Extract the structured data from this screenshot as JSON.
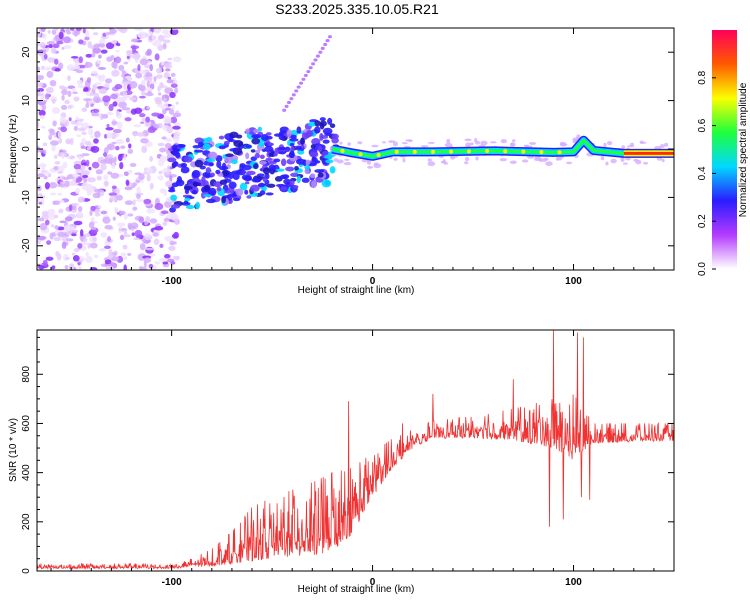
{
  "figure_title": "S233.2025.335.10.05.R21",
  "chart_data": [
    {
      "type": "heatmap",
      "title": "",
      "xlabel": "Height of straight line (km)",
      "ylabel": "Frequency (Hz)",
      "xlim": [
        -167,
        150
      ],
      "ylim": [
        -25,
        25
      ],
      "xticks": [
        -100,
        0,
        100
      ],
      "xtick_labels": [
        "-100",
        "0",
        "100"
      ],
      "yticks": [
        -20,
        -10,
        0,
        10,
        20
      ],
      "ytick_labels": [
        "-20",
        "-10",
        "0",
        "10",
        "20"
      ],
      "trace": [
        {
          "x": -20,
          "y": 0.0
        },
        {
          "x": -10,
          "y": -0.8
        },
        {
          "x": 0,
          "y": -1.5
        },
        {
          "x": 10,
          "y": -0.6
        },
        {
          "x": 30,
          "y": -0.6
        },
        {
          "x": 60,
          "y": -0.4
        },
        {
          "x": 90,
          "y": -0.7
        },
        {
          "x": 100,
          "y": -0.6
        },
        {
          "x": 105,
          "y": 1.8
        },
        {
          "x": 110,
          "y": -0.3
        },
        {
          "x": 125,
          "y": -0.9
        },
        {
          "x": 150,
          "y": -0.9
        }
      ],
      "colorbar": {
        "label": "Normalized spectral amplitude",
        "range": [
          0,
          1
        ],
        "ticks": [
          0,
          0.2,
          0.4,
          0.6,
          0.8
        ],
        "tick_labels": [
          "0.0",
          "0.2",
          "0.4",
          "0.6",
          "0.8"
        ],
        "colors": [
          "#ffffff",
          "#b43bff",
          "#2a1cff",
          "#00d9ff",
          "#1fff3c",
          "#fbff00",
          "#ff5a00",
          "#ff005a"
        ]
      }
    },
    {
      "type": "line",
      "title": "",
      "xlabel": "Height of straight line (km)",
      "ylabel": "SNR (10 * v/v)",
      "xlim": [
        -167,
        150
      ],
      "ylim": [
        0,
        980
      ],
      "xticks": [
        -100,
        0,
        100
      ],
      "xtick_labels": [
        "-100",
        "0",
        "100"
      ],
      "yticks": [
        0,
        200,
        400,
        600,
        800
      ],
      "ytick_labels": [
        "0",
        "200",
        "400",
        "600",
        "800"
      ],
      "series": [
        {
          "name": "SNR",
          "color": "#f03232",
          "envelope": [
            {
              "x": -167,
              "lo": 10,
              "hi": 30
            },
            {
              "x": -100,
              "lo": 10,
              "hi": 30
            },
            {
              "x": -90,
              "lo": 15,
              "hi": 50
            },
            {
              "x": -80,
              "lo": 20,
              "hi": 90
            },
            {
              "x": -70,
              "lo": 30,
              "hi": 160
            },
            {
              "x": -60,
              "lo": 40,
              "hi": 260
            },
            {
              "x": -50,
              "lo": 50,
              "hi": 300
            },
            {
              "x": -40,
              "lo": 60,
              "hi": 330
            },
            {
              "x": -30,
              "lo": 60,
              "hi": 360
            },
            {
              "x": -20,
              "lo": 80,
              "hi": 400
            },
            {
              "x": -10,
              "lo": 150,
              "hi": 420
            },
            {
              "x": 0,
              "lo": 300,
              "hi": 480
            },
            {
              "x": 10,
              "lo": 420,
              "hi": 540
            },
            {
              "x": 20,
              "lo": 500,
              "hi": 580
            },
            {
              "x": 30,
              "lo": 540,
              "hi": 610
            },
            {
              "x": 50,
              "lo": 540,
              "hi": 630
            },
            {
              "x": 70,
              "lo": 530,
              "hi": 660
            },
            {
              "x": 90,
              "lo": 500,
              "hi": 700
            },
            {
              "x": 100,
              "lo": 450,
              "hi": 720
            },
            {
              "x": 110,
              "lo": 520,
              "hi": 600
            },
            {
              "x": 150,
              "lo": 530,
              "hi": 600
            }
          ],
          "spikes": [
            {
              "x": -12,
              "y": 690
            },
            {
              "x": 15,
              "y": 600
            },
            {
              "x": 30,
              "y": 720
            },
            {
              "x": 70,
              "y": 780
            },
            {
              "x": 88,
              "y": 180
            },
            {
              "x": 90,
              "y": 980
            },
            {
              "x": 95,
              "y": 210
            },
            {
              "x": 102,
              "y": 970
            },
            {
              "x": 104,
              "y": 300
            },
            {
              "x": 105,
              "y": 950
            },
            {
              "x": 108,
              "y": 290
            }
          ]
        }
      ]
    }
  ]
}
